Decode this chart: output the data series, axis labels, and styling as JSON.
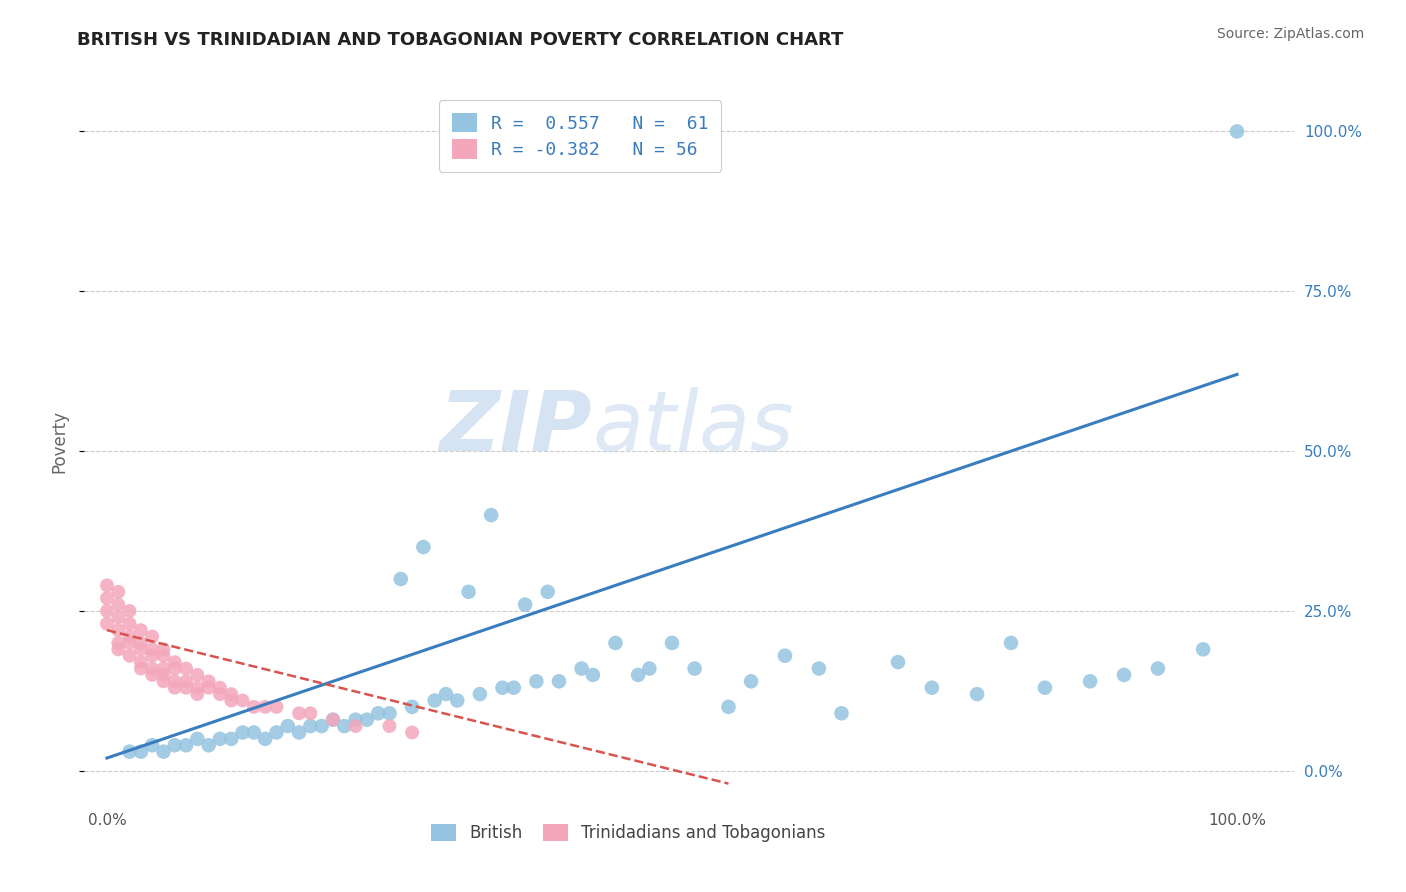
{
  "title": "BRITISH VS TRINIDADIAN AND TOBAGONIAN POVERTY CORRELATION CHART",
  "source": "Source: ZipAtlas.com",
  "ylabel": "Poverty",
  "blue_color": "#94c4e0",
  "pink_color": "#f4a7bb",
  "blue_line_color": "#3a7dbf",
  "pink_line_color": "#d9534f",
  "watermark_zip": "ZIP",
  "watermark_atlas": "atlas",
  "background_color": "#ffffff",
  "grid_color": "#cccccc",
  "scatter_blue_x": [
    2,
    3,
    4,
    5,
    6,
    7,
    8,
    9,
    10,
    11,
    12,
    13,
    14,
    15,
    16,
    17,
    18,
    19,
    20,
    21,
    22,
    23,
    24,
    25,
    26,
    27,
    28,
    29,
    30,
    31,
    32,
    33,
    34,
    35,
    36,
    37,
    38,
    39,
    40,
    42,
    43,
    45,
    47,
    48,
    50,
    52,
    55,
    57,
    60,
    63,
    65,
    70,
    73,
    77,
    80,
    83,
    87,
    90,
    93,
    97,
    100
  ],
  "scatter_blue_y": [
    3,
    3,
    4,
    3,
    4,
    4,
    5,
    4,
    5,
    5,
    6,
    6,
    5,
    6,
    7,
    6,
    7,
    7,
    8,
    7,
    8,
    8,
    9,
    9,
    30,
    10,
    35,
    11,
    12,
    11,
    28,
    12,
    40,
    13,
    13,
    26,
    14,
    28,
    14,
    16,
    15,
    20,
    15,
    16,
    20,
    16,
    10,
    14,
    18,
    16,
    9,
    17,
    13,
    12,
    20,
    13,
    14,
    15,
    16,
    19,
    100
  ],
  "scatter_pink_x": [
    0,
    0,
    0,
    0,
    1,
    1,
    1,
    1,
    1,
    1,
    2,
    2,
    2,
    2,
    2,
    3,
    3,
    3,
    3,
    3,
    4,
    4,
    4,
    4,
    4,
    5,
    5,
    5,
    5,
    5,
    6,
    6,
    6,
    6,
    7,
    7,
    7,
    8,
    8,
    8,
    9,
    9,
    10,
    10,
    11,
    11,
    12,
    13,
    14,
    15,
    17,
    18,
    20,
    22,
    25,
    27
  ],
  "scatter_pink_y": [
    29,
    27,
    25,
    23,
    28,
    26,
    24,
    22,
    20,
    19,
    25,
    23,
    21,
    20,
    18,
    22,
    20,
    19,
    17,
    16,
    21,
    19,
    18,
    16,
    15,
    19,
    18,
    16,
    15,
    14,
    17,
    16,
    14,
    13,
    16,
    14,
    13,
    15,
    13,
    12,
    14,
    13,
    13,
    12,
    12,
    11,
    11,
    10,
    10,
    10,
    9,
    9,
    8,
    7,
    7,
    6
  ],
  "blue_trend_x": [
    0,
    100
  ],
  "blue_trend_y": [
    2,
    62
  ],
  "pink_trend_x": [
    0,
    55
  ],
  "pink_trend_y": [
    22,
    -2
  ],
  "xlim": [
    -2,
    105
  ],
  "ylim": [
    -5,
    108
  ],
  "ytick_vals": [
    0,
    25,
    50,
    75,
    100
  ],
  "ytick_labels": [
    "0.0%",
    "25.0%",
    "50.0%",
    "75.0%",
    "100.0%"
  ],
  "xtick_vals": [
    0,
    100
  ],
  "xtick_labels": [
    "0.0%",
    "100.0%"
  ],
  "legend1_label1": "R =  0.557   N =  61",
  "legend1_label2": "R = -0.382   N = 56",
  "legend2_label1": "British",
  "legend2_label2": "Trinidadians and Tobagonians"
}
